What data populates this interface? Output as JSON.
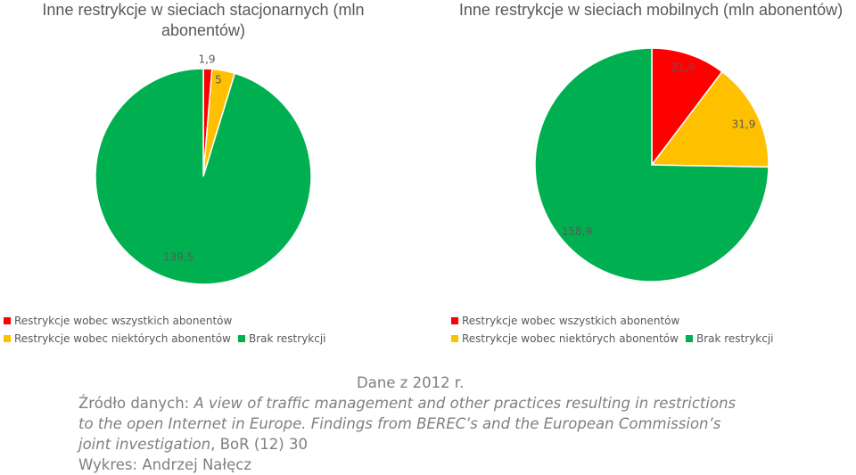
{
  "chart_data": [
    {
      "type": "pie",
      "title": "Inne restrykcje w sieciach stacjonarnych (mln abonentów)",
      "categories": [
        "Restrykcje wobec wszystkich abonentów",
        "Restrykcje wobec niektórych abonentów",
        "Brak restrykcji"
      ],
      "values": [
        1.9,
        5,
        139.5
      ],
      "value_labels": [
        "1,9",
        "5",
        "139,5"
      ],
      "colors": [
        "#ff0000",
        "#ffc000",
        "#00b050"
      ],
      "legend": "bottom"
    },
    {
      "type": "pie",
      "title": "Inne restrykcje w sieciach mobilnych (mln abonentów)",
      "categories": [
        "Restrykcje wobec wszystkich abonentów",
        "Restrykcje wobec niektórych abonentów",
        "Brak restrykcji"
      ],
      "values": [
        21.9,
        31.9,
        158.9
      ],
      "value_labels": [
        "21,9",
        "31,9",
        "158,9"
      ],
      "colors": [
        "#ff0000",
        "#ffc000",
        "#00b050"
      ],
      "legend": "bottom"
    }
  ],
  "notes": {
    "date": "Dane z 2012 r.",
    "source_prefix": "Źródło danych: ",
    "source_title": "A view of traffic management and other practices resulting in restrictions to the open Internet in Europe. Findings from BEREC’s and the European Commission’s joint investigation",
    "source_suffix": ", BoR (12) 30",
    "author": "Wykres: Andrzej Nałęcz"
  }
}
